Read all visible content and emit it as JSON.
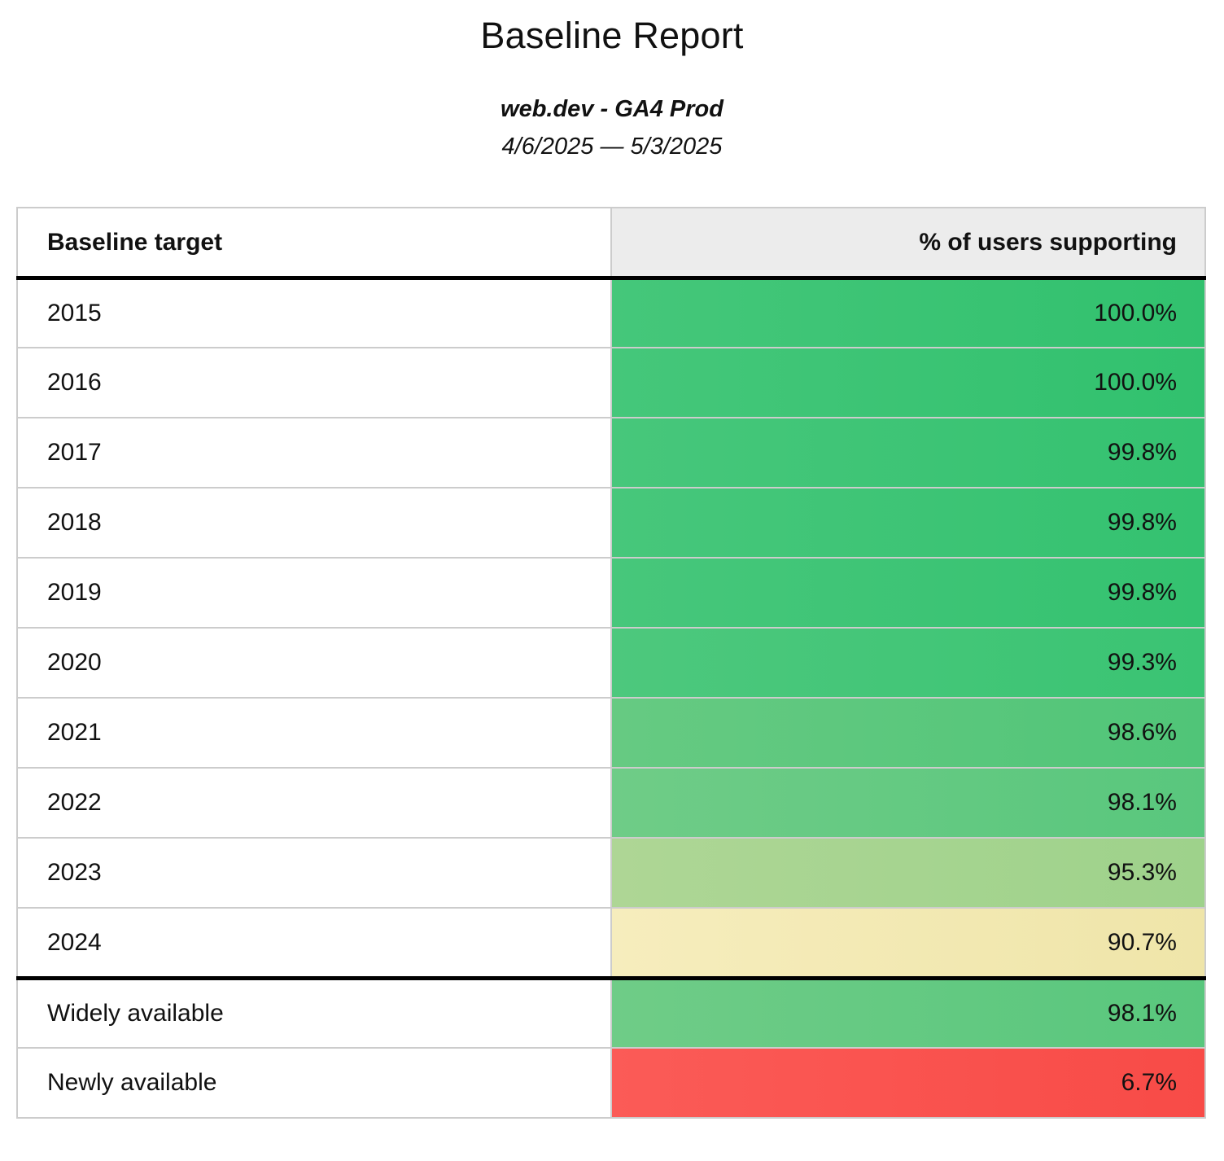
{
  "report": {
    "title": "Baseline Report",
    "subtitle": "web.dev - GA4 Prod",
    "date_range": "4/6/2025 — 5/3/2025"
  },
  "table": {
    "columns": [
      "Baseline target",
      "% of users supporting"
    ],
    "rows": [
      {
        "label": "2015",
        "value": "100.0%",
        "color_start": "#45c77a",
        "color_end": "#31c16e",
        "divider_above": false
      },
      {
        "label": "2016",
        "value": "100.0%",
        "color_start": "#45c77a",
        "color_end": "#31c16e",
        "divider_above": false
      },
      {
        "label": "2017",
        "value": "99.8%",
        "color_start": "#47c77b",
        "color_end": "#34c270",
        "divider_above": false
      },
      {
        "label": "2018",
        "value": "99.8%",
        "color_start": "#47c77b",
        "color_end": "#34c270",
        "divider_above": false
      },
      {
        "label": "2019",
        "value": "99.8%",
        "color_start": "#47c77b",
        "color_end": "#34c270",
        "divider_above": false
      },
      {
        "label": "2020",
        "value": "99.3%",
        "color_start": "#4dc87d",
        "color_end": "#3ac473",
        "divider_above": false
      },
      {
        "label": "2021",
        "value": "98.6%",
        "color_start": "#66ca82",
        "color_end": "#50c578",
        "divider_above": false
      },
      {
        "label": "2022",
        "value": "98.1%",
        "color_start": "#6fcc87",
        "color_end": "#59c77d",
        "divider_above": false
      },
      {
        "label": "2023",
        "value": "95.3%",
        "color_start": "#aed695",
        "color_end": "#9ed28b",
        "divider_above": false
      },
      {
        "label": "2024",
        "value": "90.7%",
        "color_start": "#f6edbd",
        "color_end": "#efe5a9",
        "divider_above": false
      },
      {
        "label": "Widely available",
        "value": "98.1%",
        "color_start": "#6fcc87",
        "color_end": "#59c77d",
        "divider_above": true
      },
      {
        "label": "Newly available",
        "value": "6.7%",
        "color_start": "#fb5b57",
        "color_end": "#f84b47",
        "divider_above": false
      }
    ]
  },
  "colors": {
    "header_background": "#ececec",
    "grid_line": "#cccccc",
    "heavy_rule": "#000000",
    "text": "#111111",
    "scale_green_high": "#3bc474",
    "scale_green_mid": "#5ec77f",
    "scale_green_low": "#a6d490",
    "scale_yellow": "#f2e8b2",
    "scale_red": "#f9524e"
  },
  "chart_data": {
    "type": "table",
    "title": "Baseline Report",
    "subtitle": "web.dev - GA4 Prod",
    "date_range": "4/6/2025 — 5/3/2025",
    "columns": [
      "Baseline target",
      "% of users supporting"
    ],
    "categories": [
      "2015",
      "2016",
      "2017",
      "2018",
      "2019",
      "2020",
      "2021",
      "2022",
      "2023",
      "2024",
      "Widely available",
      "Newly available"
    ],
    "values": [
      100.0,
      100.0,
      99.8,
      99.8,
      99.8,
      99.3,
      98.6,
      98.1,
      95.3,
      90.7,
      98.1,
      6.7
    ],
    "value_unit": "%",
    "color_scale": "green (high) → yellow (~90%) → red (low)"
  }
}
